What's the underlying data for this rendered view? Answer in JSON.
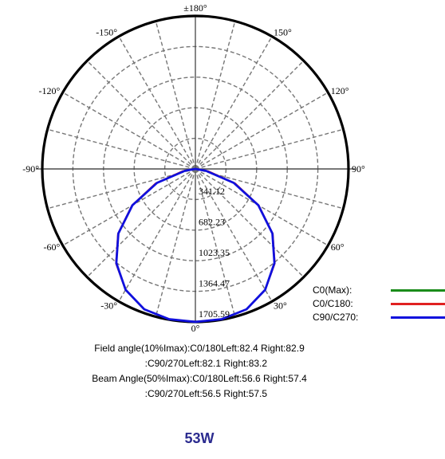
{
  "chart_data": {
    "type": "polar",
    "angle_labels": [
      {
        "angle": 180,
        "text": "±180°"
      },
      {
        "angle": -150,
        "text": "-150°"
      },
      {
        "angle": 150,
        "text": "150°"
      },
      {
        "angle": -120,
        "text": "-120°"
      },
      {
        "angle": 120,
        "text": "120°"
      },
      {
        "angle": -90,
        "text": "-90°"
      },
      {
        "angle": 90,
        "text": "90°"
      },
      {
        "angle": -60,
        "text": "-60°"
      },
      {
        "angle": 60,
        "text": "60°"
      },
      {
        "angle": -30,
        "text": "-30°"
      },
      {
        "angle": 30,
        "text": "30°"
      },
      {
        "angle": 0,
        "text": "0°"
      }
    ],
    "radial_ticks": [
      341.12,
      682.23,
      1023.35,
      1364.47,
      1705.59
    ],
    "radial_tick_labels": [
      "341.12",
      "682.23",
      "1023.35",
      "1364.47",
      "1705.59"
    ],
    "r_max": 1705.59,
    "spoke_step_deg": 15,
    "grid": true,
    "legend_position": "bottom-right",
    "series": [
      {
        "name": "C0(Max):",
        "color": "#1a8c1a",
        "angles": [],
        "values": []
      },
      {
        "name": "C0/C180:",
        "color": "#e02020",
        "angles": [
          -90,
          -80,
          -70,
          -60,
          -50,
          -40,
          -30,
          -20,
          -10,
          0,
          10,
          20,
          30,
          40,
          50,
          60,
          70,
          80,
          90
        ],
        "values": [
          0,
          145,
          470,
          815,
          1125,
          1375,
          1555,
          1665,
          1700,
          1705,
          1700,
          1665,
          1555,
          1375,
          1125,
          815,
          470,
          145,
          0
        ]
      },
      {
        "name": "C90/C270:",
        "color": "#1010dd",
        "angles": [
          -90,
          -80,
          -70,
          -60,
          -50,
          -40,
          -30,
          -20,
          -10,
          0,
          10,
          20,
          30,
          40,
          50,
          60,
          70,
          80,
          90
        ],
        "values": [
          0,
          120,
          455,
          810,
          1120,
          1370,
          1555,
          1665,
          1700,
          1705,
          1700,
          1665,
          1555,
          1370,
          1120,
          810,
          455,
          120,
          0
        ]
      }
    ]
  },
  "info_lines": [
    "Field angle(10%Imax):C0/180Left:82.4 Right:82.9",
    "     :C90/270Left:82.1 Right:83.2",
    "Beam Angle(50%Imax):C0/180Left:56.6 Right:57.4",
    "     :C90/270Left:56.5 Right:57.5"
  ],
  "power_label": "53W"
}
